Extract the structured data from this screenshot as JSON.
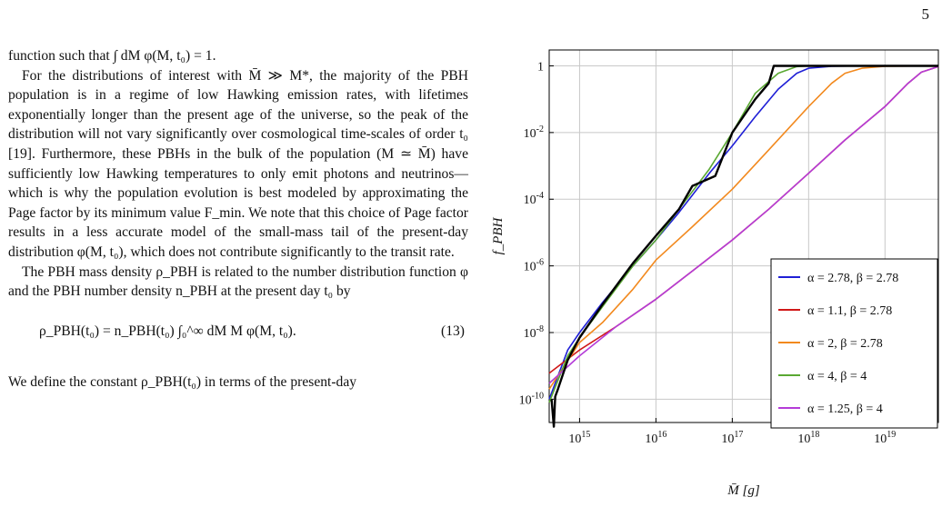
{
  "page_number": "5",
  "paragraphs": [
    {
      "id": "p1",
      "indent": false,
      "text": "function such that ∫ dM φ(M, t₀) = 1."
    },
    {
      "id": "p2",
      "indent": true,
      "text": "For the distributions of interest with M̄ ≫ M*, the majority of the PBH population is in a regime of low Hawking emission rates, with lifetimes exponentially longer than the present age of the universe, so the peak of the distribution will not vary significantly over cosmological time-scales of order t₀ [19]. Furthermore, these PBHs in the bulk of the population (M ≃ M̄) have sufficiently low Hawking temperatures to only emit photons and neutrinos—which is why the population evolution is best modeled by approximating the Page factor by its minimum value F_min. We note that this choice of Page factor results in a less accurate model of the small-mass tail of the present-day distribution φ(M, t₀), which does not contribute significantly to the transit rate."
    },
    {
      "id": "p3",
      "indent": true,
      "text": "The PBH mass density ρ_PBH is related to the number distribution function φ and the PBH number density n_PBH at the present day t₀ by"
    }
  ],
  "equation": {
    "text": "ρ_PBH(t₀) = n_PBH(t₀) ∫₀^∞ dM M φ(M, t₀).",
    "number": "(13)"
  },
  "closing_text": "We define the constant ρ_PBH(t₀) in terms of the present-day",
  "chart_data": {
    "type": "line",
    "xlabel": "M̄ [g]",
    "ylabel": "f_PBH",
    "x_scale": "log",
    "y_scale": "log",
    "xlim": [
      400000000000000.0,
      5e+19
    ],
    "ylim": [
      2e-11,
      3
    ],
    "grid": true,
    "legend_position": "bottom-right",
    "x_ticks": [
      "10^15",
      "10^16",
      "10^17",
      "10^18",
      "10^19"
    ],
    "y_ticks": [
      "1",
      "10^-2",
      "10^-4",
      "10^-6",
      "10^-8",
      "10^-10"
    ],
    "x_tick_values": [
      1000000000000000.0,
      1e+16,
      1e+17,
      1e+18,
      1e+19
    ],
    "y_tick_values": [
      1,
      0.01,
      0.0001,
      1e-06,
      1e-08,
      1e-10
    ],
    "series": [
      {
        "legend": "α = 2.78, β = 2.78",
        "color": "#1f1fd6",
        "points": [
          [
            400000000000000.0,
            1e-10
          ],
          [
            700000000000000.0,
            3e-09
          ],
          [
            1000000000000000.0,
            1e-08
          ],
          [
            2000000000000000.0,
            8e-08
          ],
          [
            5000000000000000.0,
            1e-06
          ],
          [
            1e+16,
            6e-06
          ],
          [
            2e+16,
            4e-05
          ],
          [
            5e+16,
            0.0006
          ],
          [
            1e+17,
            0.004
          ],
          [
            2e+17,
            0.03
          ],
          [
            4e+17,
            0.2
          ],
          [
            7e+17,
            0.6
          ],
          [
            1e+18,
            0.85
          ],
          [
            2e+18,
            0.97
          ],
          [
            5e+18,
            1
          ],
          [
            5e+19,
            1
          ]
        ]
      },
      {
        "legend": "α = 1.1, β = 2.78",
        "color": "#d01818",
        "points": [
          [
            400000000000000.0,
            6e-10
          ],
          [
            1000000000000000.0,
            3e-09
          ],
          [
            3000000000000000.0,
            1.5e-08
          ],
          [
            1e+16,
            1e-07
          ],
          [
            3e+16,
            7e-07
          ],
          [
            1e+17,
            6e-06
          ],
          [
            3e+17,
            5e-05
          ],
          [
            1e+18,
            0.0006
          ],
          [
            3e+18,
            0.006
          ],
          [
            1e+19,
            0.06
          ],
          [
            2e+19,
            0.3
          ],
          [
            3e+19,
            0.65
          ],
          [
            5e+19,
            0.95
          ]
        ]
      },
      {
        "legend": "α = 2, β = 2.78",
        "color": "#f2891e",
        "points": [
          [
            400000000000000.0,
            2e-10
          ],
          [
            1000000000000000.0,
            5e-09
          ],
          [
            2000000000000000.0,
            2e-08
          ],
          [
            5000000000000000.0,
            2e-07
          ],
          [
            1e+16,
            1.5e-06
          ],
          [
            3e+16,
            1.5e-05
          ],
          [
            1e+17,
            0.0002
          ],
          [
            3e+17,
            0.003
          ],
          [
            1e+18,
            0.06
          ],
          [
            2e+18,
            0.3
          ],
          [
            3e+18,
            0.6
          ],
          [
            5e+18,
            0.85
          ],
          [
            1e+19,
            0.97
          ],
          [
            5e+19,
            1
          ]
        ]
      },
      {
        "legend": "α = 4, β = 4",
        "color": "#5aa832",
        "points": [
          [
            400000000000000.0,
            8e-11
          ],
          [
            700000000000000.0,
            2e-09
          ],
          [
            1000000000000000.0,
            7e-09
          ],
          [
            2000000000000000.0,
            6e-08
          ],
          [
            5000000000000000.0,
            1e-06
          ],
          [
            1e+16,
            6e-06
          ],
          [
            2e+16,
            5e-05
          ],
          [
            5e+16,
            0.0008
          ],
          [
            1e+17,
            0.01
          ],
          [
            2e+17,
            0.15
          ],
          [
            4e+17,
            0.6
          ],
          [
            7e+17,
            0.95
          ],
          [
            1e+18,
            1
          ],
          [
            5e+19,
            1
          ]
        ]
      },
      {
        "legend": "α = 1.25, β = 4",
        "color": "#b43cd8",
        "points": [
          [
            400000000000000.0,
            3e-10
          ],
          [
            1000000000000000.0,
            2e-09
          ],
          [
            3000000000000000.0,
            1.5e-08
          ],
          [
            1e+16,
            1e-07
          ],
          [
            3e+16,
            7e-07
          ],
          [
            1e+17,
            6e-06
          ],
          [
            3e+17,
            5e-05
          ],
          [
            1e+18,
            0.0006
          ],
          [
            3e+18,
            0.006
          ],
          [
            1e+19,
            0.06
          ],
          [
            2e+19,
            0.3
          ],
          [
            3e+19,
            0.65
          ],
          [
            5e+19,
            0.95
          ]
        ]
      },
      {
        "legend": "",
        "color": "#000000",
        "points": [
          [
            430000000000000.0,
            1e-10
          ],
          [
            460000000000000.0,
            1.5e-11
          ],
          [
            480000000000000.0,
            1.2e-10
          ],
          [
            520000000000000.0,
            2e-10
          ],
          [
            700000000000000.0,
            1.5e-09
          ],
          [
            1000000000000000.0,
            7e-09
          ],
          [
            2000000000000000.0,
            7e-08
          ],
          [
            5000000000000000.0,
            1.2e-06
          ],
          [
            1e+16,
            8e-06
          ],
          [
            2e+16,
            5e-05
          ],
          [
            3e+16,
            0.00025
          ],
          [
            6e+16,
            0.0005
          ],
          [
            1e+17,
            0.01
          ],
          [
            2e+17,
            0.1
          ],
          [
            3e+17,
            0.3
          ],
          [
            3.5e+17,
            1
          ],
          [
            5e+19,
            1
          ]
        ]
      }
    ]
  }
}
